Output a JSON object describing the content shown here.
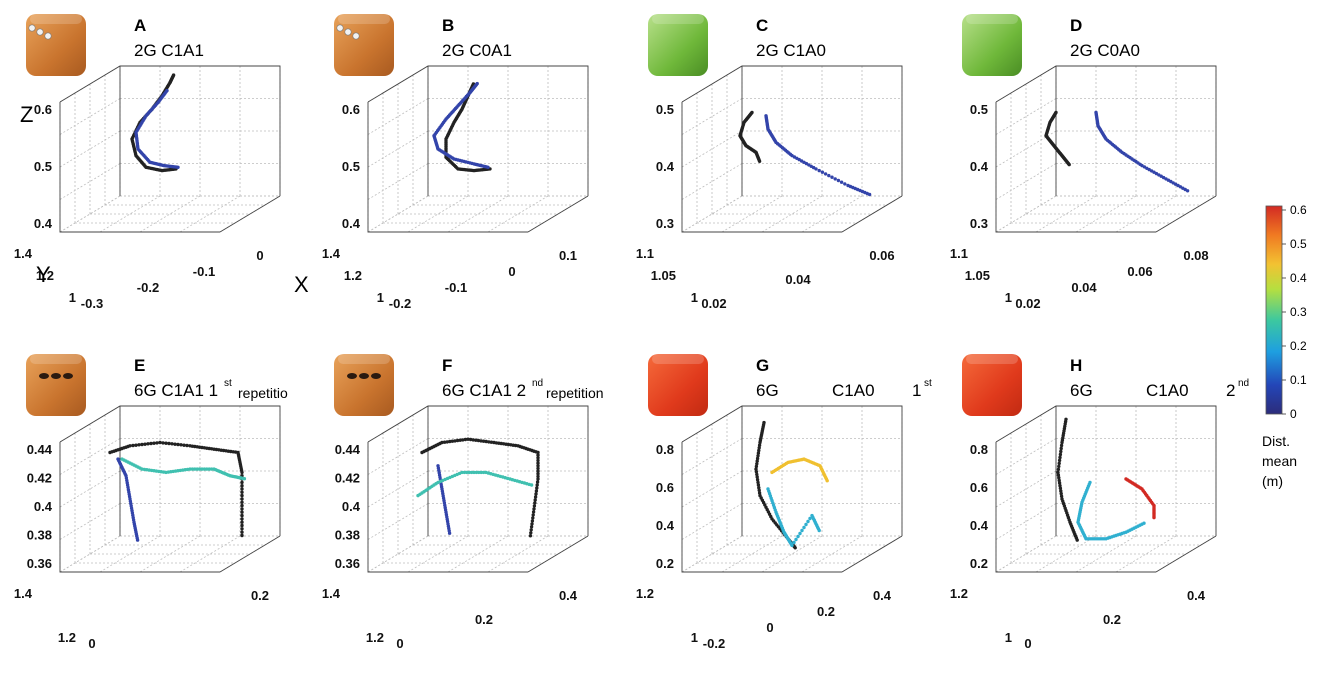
{
  "colorbar": {
    "ticks": [
      "0.6",
      "0.5",
      "0.4",
      "0.3",
      "0.2",
      "0.1",
      "0"
    ],
    "title_lines": [
      "Dist.",
      "mean",
      "(m)"
    ],
    "range": [
      0,
      0.6
    ],
    "colors": [
      "#2c2c7a",
      "#2346b8",
      "#1e9fe0",
      "#3cc8a0",
      "#b5df40",
      "#f2c232",
      "#f07a22",
      "#d22a23"
    ]
  },
  "chart_data": [
    {
      "id": "A",
      "type": "scatter",
      "letter": "A",
      "title": "2G C1A1",
      "sup": "",
      "suffix": "",
      "object": "wooden-box-2-markers",
      "axis_letters": {
        "z": "Z",
        "y": "Y",
        "x": "X"
      },
      "zticks": [
        "0.6",
        "0.5",
        "0.4"
      ],
      "yticks": [
        "1.4",
        "1.2",
        "1"
      ],
      "xticks": [
        "-0.3",
        "-0.2",
        "-0.1",
        "0"
      ],
      "series": [
        {
          "color": "#222222",
          "points": [
            [
              0.53,
              0.38
            ],
            [
              0.46,
              0.37
            ],
            [
              0.38,
              0.39
            ],
            [
              0.33,
              0.46
            ],
            [
              0.31,
              0.56
            ],
            [
              0.35,
              0.66
            ],
            [
              0.41,
              0.74
            ],
            [
              0.46,
              0.82
            ],
            [
              0.5,
              0.9
            ],
            [
              0.52,
              0.95
            ]
          ]
        },
        {
          "color": "#3344aa",
          "points": [
            [
              0.54,
              0.39
            ],
            [
              0.47,
              0.4
            ],
            [
              0.4,
              0.42
            ],
            [
              0.34,
              0.5
            ],
            [
              0.33,
              0.6
            ],
            [
              0.38,
              0.7
            ],
            [
              0.44,
              0.78
            ],
            [
              0.49,
              0.86
            ]
          ]
        }
      ]
    },
    {
      "id": "B",
      "type": "scatter",
      "letter": "B",
      "title": "2G C0A1",
      "sup": "",
      "suffix": "",
      "object": "wooden-box-2-markers",
      "axis_letters": {
        "z": "",
        "y": "",
        "x": ""
      },
      "zticks": [
        "0.6",
        "0.5",
        "0.4"
      ],
      "yticks": [
        "1.4",
        "1.2",
        "1"
      ],
      "xticks": [
        "-0.2",
        "-0.1",
        "0",
        "0.1"
      ],
      "series": [
        {
          "color": "#222222",
          "points": [
            [
              0.56,
              0.38
            ],
            [
              0.48,
              0.37
            ],
            [
              0.4,
              0.38
            ],
            [
              0.34,
              0.45
            ],
            [
              0.34,
              0.56
            ],
            [
              0.38,
              0.66
            ],
            [
              0.42,
              0.74
            ],
            [
              0.45,
              0.82
            ],
            [
              0.48,
              0.9
            ]
          ]
        },
        {
          "color": "#3344aa",
          "points": [
            [
              0.55,
              0.39
            ],
            [
              0.48,
              0.41
            ],
            [
              0.38,
              0.44
            ],
            [
              0.3,
              0.5
            ],
            [
              0.28,
              0.58
            ],
            [
              0.34,
              0.68
            ],
            [
              0.4,
              0.76
            ],
            [
              0.46,
              0.84
            ],
            [
              0.5,
              0.9
            ]
          ]
        }
      ]
    },
    {
      "id": "C",
      "type": "scatter",
      "letter": "C",
      "title": "2G C1A0",
      "sup": "",
      "suffix": "",
      "object": "green-box",
      "axis_letters": {
        "z": "",
        "y": "",
        "x": ""
      },
      "zticks": [
        "0.5",
        "0.4",
        "0.3"
      ],
      "yticks": [
        "1.1",
        "1.05",
        "1"
      ],
      "xticks": [
        "0.02",
        "0.04",
        "0.06"
      ],
      "series": [
        {
          "color": "#222222",
          "points": [
            [
              0.3,
              0.72
            ],
            [
              0.26,
              0.66
            ],
            [
              0.24,
              0.58
            ],
            [
              0.27,
              0.52
            ],
            [
              0.32,
              0.48
            ],
            [
              0.34,
              0.42
            ]
          ]
        },
        {
          "color": "#3344aa",
          "points": [
            [
              0.37,
              0.7
            ],
            [
              0.38,
              0.62
            ],
            [
              0.42,
              0.54
            ],
            [
              0.5,
              0.46
            ],
            [
              0.62,
              0.38
            ],
            [
              0.78,
              0.28
            ],
            [
              0.9,
              0.22
            ]
          ]
        }
      ]
    },
    {
      "id": "D",
      "type": "scatter",
      "letter": "D",
      "title": "2G C0A0",
      "sup": "",
      "suffix": "",
      "object": "green-box",
      "axis_letters": {
        "z": "",
        "y": "",
        "x": ""
      },
      "zticks": [
        "0.5",
        "0.4",
        "0.3"
      ],
      "yticks": [
        "1.1",
        "1.05",
        "1"
      ],
      "xticks": [
        "0.02",
        "0.04",
        "0.06",
        "0.08"
      ],
      "series": [
        {
          "color": "#222222",
          "points": [
            [
              0.25,
              0.72
            ],
            [
              0.22,
              0.66
            ],
            [
              0.2,
              0.58
            ],
            [
              0.24,
              0.52
            ],
            [
              0.28,
              0.46
            ],
            [
              0.32,
              0.4
            ]
          ]
        },
        {
          "color": "#3344aa",
          "points": [
            [
              0.45,
              0.72
            ],
            [
              0.46,
              0.64
            ],
            [
              0.5,
              0.56
            ],
            [
              0.58,
              0.48
            ],
            [
              0.68,
              0.4
            ],
            [
              0.8,
              0.32
            ],
            [
              0.92,
              0.24
            ]
          ]
        }
      ]
    },
    {
      "id": "E",
      "type": "scatter",
      "letter": "E",
      "title": "6G C1A1 1",
      "sup": "st",
      "suffix": "repetitio",
      "object": "wooden-box-6-markers",
      "axis_letters": {
        "z": "",
        "y": "",
        "x": ""
      },
      "zticks": [
        "0.44",
        "0.42",
        "0.4",
        "0.38",
        "0.36"
      ],
      "yticks": [
        "1.4",
        "1.2"
      ],
      "xticks": [
        "0",
        "0.2"
      ],
      "series": [
        {
          "color": "#222222",
          "points": [
            [
              0.2,
              0.72
            ],
            [
              0.3,
              0.76
            ],
            [
              0.45,
              0.78
            ],
            [
              0.6,
              0.76
            ],
            [
              0.72,
              0.74
            ],
            [
              0.84,
              0.72
            ],
            [
              0.86,
              0.6
            ],
            [
              0.86,
              0.4
            ],
            [
              0.86,
              0.2
            ]
          ]
        },
        {
          "color": "#3344aa",
          "points": [
            [
              0.24,
              0.68
            ],
            [
              0.28,
              0.58
            ],
            [
              0.3,
              0.44
            ],
            [
              0.32,
              0.3
            ],
            [
              0.34,
              0.18
            ]
          ]
        },
        {
          "color": "#40c0b0",
          "points": [
            [
              0.26,
              0.68
            ],
            [
              0.36,
              0.62
            ],
            [
              0.48,
              0.6
            ],
            [
              0.6,
              0.62
            ],
            [
              0.72,
              0.62
            ],
            [
              0.8,
              0.58
            ],
            [
              0.88,
              0.56
            ]
          ]
        }
      ]
    },
    {
      "id": "F",
      "type": "scatter",
      "letter": "F",
      "title": "6G C1A1 2",
      "sup": "nd",
      "suffix": "repetition",
      "object": "wooden-box-6-markers",
      "axis_letters": {
        "z": "",
        "y": "",
        "x": ""
      },
      "zticks": [
        "0.44",
        "0.42",
        "0.4",
        "0.38",
        "0.36"
      ],
      "yticks": [
        "1.4",
        "1.2"
      ],
      "xticks": [
        "0",
        "0.2",
        "0.4"
      ],
      "series": [
        {
          "color": "#222222",
          "points": [
            [
              0.22,
              0.72
            ],
            [
              0.32,
              0.78
            ],
            [
              0.45,
              0.8
            ],
            [
              0.58,
              0.78
            ],
            [
              0.7,
              0.76
            ],
            [
              0.8,
              0.72
            ],
            [
              0.8,
              0.56
            ],
            [
              0.78,
              0.38
            ],
            [
              0.76,
              0.2
            ]
          ]
        },
        {
          "color": "#3344aa",
          "points": [
            [
              0.3,
              0.64
            ],
            [
              0.32,
              0.5
            ],
            [
              0.34,
              0.36
            ],
            [
              0.36,
              0.22
            ]
          ]
        },
        {
          "color": "#40c0b0",
          "points": [
            [
              0.2,
              0.46
            ],
            [
              0.3,
              0.54
            ],
            [
              0.42,
              0.6
            ],
            [
              0.54,
              0.6
            ],
            [
              0.66,
              0.56
            ],
            [
              0.78,
              0.52
            ]
          ]
        }
      ]
    },
    {
      "id": "G",
      "type": "scatter",
      "letter": "G",
      "title": "6G",
      "sup": "st",
      "suffix": "C1A0",
      "sup_prefix": "1",
      "object": "red-box",
      "axis_letters": {
        "z": "",
        "y": "",
        "x": ""
      },
      "zticks": [
        "0.8",
        "0.6",
        "0.4",
        "0.2"
      ],
      "yticks": [
        "1.2",
        "1"
      ],
      "xticks": [
        "-0.2",
        "0",
        "0.2",
        "0.4"
      ],
      "series": [
        {
          "color": "#222222",
          "points": [
            [
              0.36,
              0.9
            ],
            [
              0.34,
              0.78
            ],
            [
              0.32,
              0.62
            ],
            [
              0.34,
              0.46
            ],
            [
              0.4,
              0.32
            ],
            [
              0.48,
              0.2
            ],
            [
              0.52,
              0.14
            ]
          ]
        },
        {
          "color": "#f0c030",
          "points": [
            [
              0.4,
              0.6
            ],
            [
              0.48,
              0.66
            ],
            [
              0.56,
              0.68
            ],
            [
              0.64,
              0.64
            ],
            [
              0.68,
              0.54
            ]
          ]
        },
        {
          "color": "#30b0d0",
          "points": [
            [
              0.38,
              0.5
            ],
            [
              0.42,
              0.36
            ],
            [
              0.46,
              0.24
            ],
            [
              0.5,
              0.16
            ],
            [
              0.6,
              0.34
            ],
            [
              0.64,
              0.24
            ]
          ]
        }
      ]
    },
    {
      "id": "H",
      "type": "scatter",
      "letter": "H",
      "title": "6G",
      "sup": "nd",
      "suffix": "C1A0",
      "sup_prefix": "2",
      "object": "red-box",
      "axis_letters": {
        "z": "",
        "y": "",
        "x": ""
      },
      "zticks": [
        "0.8",
        "0.6",
        "0.4",
        "0.2"
      ],
      "yticks": [
        "1.2",
        "1"
      ],
      "xticks": [
        "0",
        "0.2",
        "0.4"
      ],
      "series": [
        {
          "color": "#222222",
          "points": [
            [
              0.3,
              0.92
            ],
            [
              0.28,
              0.78
            ],
            [
              0.26,
              0.6
            ],
            [
              0.28,
              0.44
            ],
            [
              0.32,
              0.3
            ],
            [
              0.36,
              0.18
            ]
          ]
        },
        {
          "color": "#d22a23",
          "points": [
            [
              0.6,
              0.56
            ],
            [
              0.68,
              0.5
            ],
            [
              0.74,
              0.4
            ],
            [
              0.74,
              0.32
            ]
          ]
        },
        {
          "color": "#30b0d0",
          "points": [
            [
              0.42,
              0.54
            ],
            [
              0.38,
              0.42
            ],
            [
              0.36,
              0.3
            ],
            [
              0.4,
              0.2
            ],
            [
              0.5,
              0.2
            ],
            [
              0.6,
              0.24
            ],
            [
              0.7,
              0.3
            ]
          ]
        }
      ]
    }
  ]
}
